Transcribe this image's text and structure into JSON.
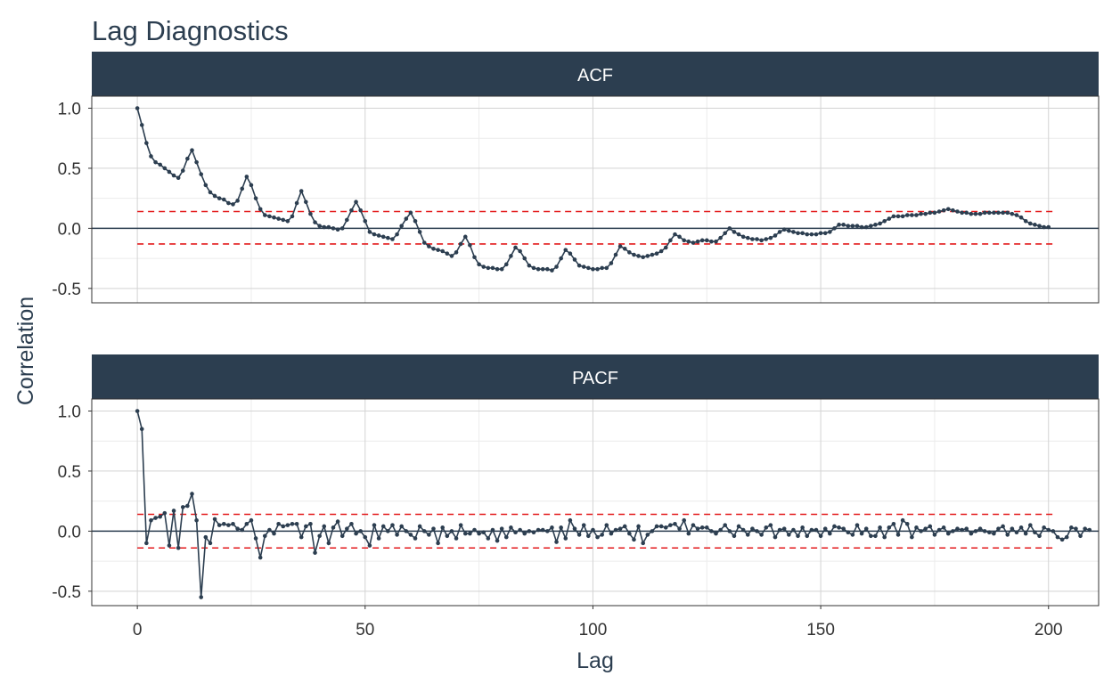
{
  "title": "Lag Diagnostics",
  "colors": {
    "series": "#2c3e50",
    "strip": "#2c3e50",
    "threshold": "#e31a1c",
    "grid": "#d3d3d3",
    "grid_minor": "#ececec",
    "zero_line": "#2c3e50"
  },
  "chart_data": {
    "type": "line",
    "xlabel": "Lag",
    "ylabel": "Correlation",
    "xlim": [
      -10,
      211
    ],
    "ylim": [
      -0.62,
      1.1
    ],
    "x_ticks": [
      0,
      50,
      100,
      150,
      200
    ],
    "y_ticks": [
      -0.5,
      0.0,
      0.5,
      1.0
    ],
    "y_tick_labels": [
      "-0.5",
      "0.0",
      "0.5",
      "1.0"
    ],
    "grid": true,
    "lag_start": 0,
    "lag_end": 201,
    "facets": [
      {
        "label": "ACF",
        "threshold_upper": 0.14,
        "threshold_lower": -0.13,
        "values": [
          1.0,
          0.86,
          0.71,
          0.6,
          0.55,
          0.53,
          0.5,
          0.47,
          0.44,
          0.42,
          0.48,
          0.58,
          0.65,
          0.55,
          0.45,
          0.36,
          0.3,
          0.27,
          0.25,
          0.24,
          0.21,
          0.2,
          0.23,
          0.33,
          0.43,
          0.36,
          0.25,
          0.16,
          0.11,
          0.1,
          0.09,
          0.08,
          0.07,
          0.06,
          0.1,
          0.21,
          0.31,
          0.22,
          0.12,
          0.05,
          0.02,
          0.01,
          0.01,
          0.0,
          -0.01,
          0.0,
          0.07,
          0.15,
          0.22,
          0.15,
          0.06,
          -0.03,
          -0.05,
          -0.06,
          -0.07,
          -0.08,
          -0.09,
          -0.05,
          0.02,
          0.08,
          0.13,
          0.06,
          -0.03,
          -0.12,
          -0.15,
          -0.17,
          -0.18,
          -0.19,
          -0.21,
          -0.23,
          -0.2,
          -0.13,
          -0.07,
          -0.14,
          -0.24,
          -0.3,
          -0.32,
          -0.33,
          -0.33,
          -0.34,
          -0.34,
          -0.3,
          -0.23,
          -0.16,
          -0.19,
          -0.25,
          -0.31,
          -0.33,
          -0.34,
          -0.34,
          -0.34,
          -0.35,
          -0.32,
          -0.25,
          -0.18,
          -0.21,
          -0.26,
          -0.31,
          -0.32,
          -0.33,
          -0.34,
          -0.34,
          -0.33,
          -0.33,
          -0.29,
          -0.22,
          -0.15,
          -0.17,
          -0.2,
          -0.22,
          -0.23,
          -0.24,
          -0.23,
          -0.22,
          -0.21,
          -0.19,
          -0.16,
          -0.1,
          -0.05,
          -0.07,
          -0.1,
          -0.11,
          -0.12,
          -0.11,
          -0.1,
          -0.1,
          -0.11,
          -0.11,
          -0.08,
          -0.04,
          0.0,
          -0.03,
          -0.05,
          -0.07,
          -0.08,
          -0.09,
          -0.09,
          -0.1,
          -0.09,
          -0.08,
          -0.06,
          -0.03,
          -0.01,
          -0.02,
          -0.03,
          -0.04,
          -0.04,
          -0.05,
          -0.05,
          -0.05,
          -0.04,
          -0.04,
          -0.03,
          0.0,
          0.03,
          0.03,
          0.02,
          0.02,
          0.02,
          0.01,
          0.01,
          0.02,
          0.03,
          0.04,
          0.06,
          0.08,
          0.1,
          0.1,
          0.1,
          0.11,
          0.11,
          0.11,
          0.12,
          0.12,
          0.13,
          0.13,
          0.14,
          0.15,
          0.16,
          0.15,
          0.14,
          0.13,
          0.13,
          0.12,
          0.12,
          0.12,
          0.13,
          0.13,
          0.13,
          0.13,
          0.13,
          0.13,
          0.12,
          0.11,
          0.09,
          0.06,
          0.04,
          0.03,
          0.02,
          0.01,
          0.01
        ]
      },
      {
        "label": "PACF",
        "threshold_upper": 0.14,
        "threshold_lower": -0.14,
        "values": [
          1.0,
          0.85,
          -0.1,
          0.09,
          0.11,
          0.12,
          0.15,
          -0.12,
          0.17,
          -0.14,
          0.2,
          0.21,
          0.31,
          0.09,
          -0.55,
          -0.05,
          -0.1,
          0.1,
          0.05,
          0.06,
          0.05,
          0.06,
          0.02,
          0.01,
          0.06,
          0.09,
          -0.06,
          -0.22,
          -0.04,
          0.01,
          -0.02,
          0.06,
          0.04,
          0.05,
          0.06,
          0.06,
          -0.05,
          0.04,
          0.06,
          -0.18,
          -0.04,
          0.04,
          -0.1,
          0.03,
          0.08,
          -0.04,
          0.02,
          0.06,
          -0.02,
          0.0,
          -0.05,
          -0.12,
          0.05,
          -0.06,
          0.04,
          0.0,
          0.05,
          -0.03,
          0.04,
          0.0,
          -0.03,
          -0.06,
          0.04,
          0.0,
          -0.03,
          0.02,
          -0.1,
          0.03,
          -0.04,
          0.0,
          -0.06,
          0.05,
          -0.02,
          -0.02,
          0.01,
          -0.02,
          -0.01,
          -0.06,
          0.01,
          -0.08,
          0.02,
          -0.05,
          0.03,
          -0.01,
          0.01,
          -0.02,
          0.0,
          -0.01,
          0.01,
          0.01,
          0.0,
          0.03,
          -0.09,
          0.03,
          -0.06,
          0.09,
          0.02,
          -0.03,
          0.05,
          -0.04,
          0.01,
          -0.05,
          -0.03,
          0.05,
          -0.02,
          0.01,
          0.02,
          0.04,
          -0.02,
          -0.07,
          0.04,
          -0.1,
          -0.03,
          0.0,
          0.04,
          0.04,
          0.03,
          0.05,
          0.06,
          0.02,
          0.09,
          -0.02,
          0.05,
          0.02,
          0.03,
          0.03,
          0.0,
          -0.02,
          0.01,
          0.05,
          0.0,
          -0.04,
          0.04,
          0.01,
          -0.03,
          0.02,
          0.0,
          -0.03,
          0.03,
          0.05,
          -0.05,
          0.01,
          0.02,
          -0.03,
          0.01,
          -0.04,
          0.03,
          -0.04,
          0.01,
          0.01,
          -0.04,
          0.02,
          -0.02,
          0.04,
          0.03,
          0.02,
          -0.01,
          -0.03,
          0.05,
          -0.02,
          0.02,
          -0.04,
          -0.04,
          0.03,
          -0.05,
          0.03,
          0.06,
          -0.03,
          0.09,
          0.06,
          -0.05,
          0.03,
          0.0,
          0.02,
          0.04,
          -0.03,
          0.01,
          0.03,
          -0.02,
          0.0,
          0.02,
          0.01,
          0.02,
          -0.02,
          0.0,
          0.02,
          0.0,
          -0.01,
          -0.02,
          0.02,
          0.04,
          -0.03,
          0.02,
          -0.01,
          0.03,
          -0.02,
          0.05,
          -0.01,
          -0.04,
          0.03,
          0.01,
          0.0,
          -0.05,
          -0.07,
          -0.05,
          0.03,
          0.02,
          -0.04,
          0.02,
          0.01
        ]
      }
    ]
  }
}
